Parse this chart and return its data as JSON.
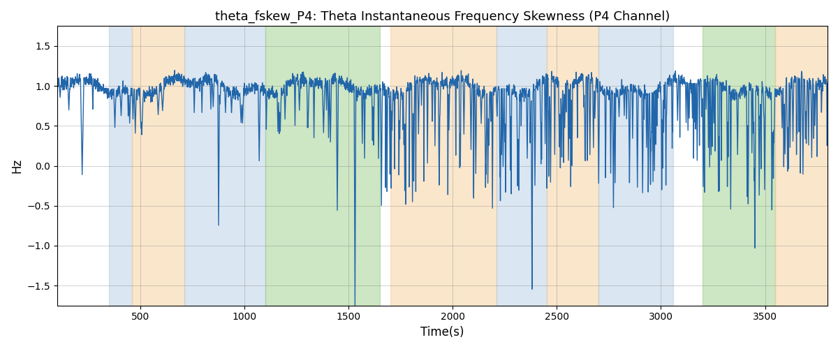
{
  "title": "theta_fskew_P4: Theta Instantaneous Frequency Skewness (P4 Channel)",
  "xlabel": "Time(s)",
  "ylabel": "Hz",
  "xlim": [
    100,
    3800
  ],
  "ylim": [
    -1.75,
    1.75
  ],
  "yticks": [
    -1.5,
    -1.0,
    -0.5,
    0.0,
    0.5,
    1.0,
    1.5
  ],
  "xticks": [
    500,
    1000,
    1500,
    2000,
    2500,
    3000,
    3500
  ],
  "line_color": "#2266aa",
  "line_width": 1.0,
  "bg_color": "#ffffff",
  "shaded_regions": [
    {
      "xmin": 350,
      "xmax": 460,
      "color": "#adc8e0",
      "alpha": 0.45
    },
    {
      "xmin": 460,
      "xmax": 710,
      "color": "#f5c98c",
      "alpha": 0.45
    },
    {
      "xmin": 710,
      "xmax": 1100,
      "color": "#adc8e0",
      "alpha": 0.45
    },
    {
      "xmin": 1100,
      "xmax": 1650,
      "color": "#90c97a",
      "alpha": 0.45
    },
    {
      "xmin": 1700,
      "xmax": 2210,
      "color": "#f5c98c",
      "alpha": 0.45
    },
    {
      "xmin": 2210,
      "xmax": 2450,
      "color": "#adc8e0",
      "alpha": 0.45
    },
    {
      "xmin": 2450,
      "xmax": 2700,
      "color": "#f5c98c",
      "alpha": 0.45
    },
    {
      "xmin": 2700,
      "xmax": 3060,
      "color": "#adc8e0",
      "alpha": 0.45
    },
    {
      "xmin": 3200,
      "xmax": 3550,
      "color": "#90c97a",
      "alpha": 0.45
    },
    {
      "xmin": 3550,
      "xmax": 3800,
      "color": "#f5c98c",
      "alpha": 0.45
    }
  ],
  "t_start": 100,
  "t_end": 3800,
  "figsize": [
    12.0,
    5.0
  ],
  "dpi": 100
}
